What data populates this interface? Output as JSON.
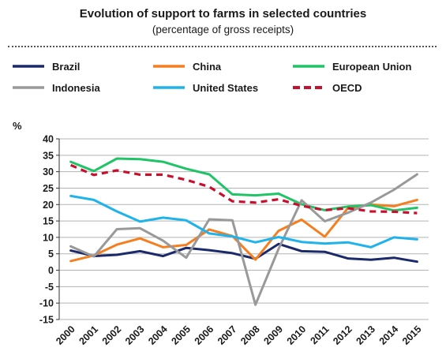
{
  "chart_data": {
    "type": "line",
    "title": "Evolution of support to farms in selected countries",
    "subtitle": "(percentage of gross receipts)",
    "ylabel": "%",
    "xlabel": "",
    "ylim": [
      -15,
      40
    ],
    "yticks": [
      40,
      35,
      30,
      25,
      20,
      15,
      10,
      5,
      0,
      -5,
      -10,
      -15
    ],
    "grid": true,
    "legend_position": "top",
    "categories": [
      "2000",
      "2001",
      "2002",
      "2003",
      "2004",
      "2005",
      "2006",
      "2007",
      "2008",
      "2009",
      "2010",
      "2011",
      "2012",
      "2013",
      "2014",
      "2015"
    ],
    "series": [
      {
        "name": "Brazil",
        "color": "#1b2a6b",
        "dash": "solid",
        "values": [
          6.0,
          4.3,
          4.7,
          5.8,
          4.3,
          6.8,
          6.1,
          5.2,
          3.5,
          8.0,
          5.8,
          5.6,
          3.6,
          3.2,
          3.8,
          2.6
        ]
      },
      {
        "name": "China",
        "color": "#f57f20",
        "dash": "solid",
        "values": [
          2.8,
          4.5,
          7.8,
          9.7,
          7.0,
          7.7,
          12.4,
          10.4,
          3.2,
          12.0,
          15.4,
          10.2,
          18.9,
          20.0,
          19.5,
          21.4
        ]
      },
      {
        "name": "European Union",
        "color": "#1fc466",
        "dash": "solid",
        "values": [
          33.0,
          30.2,
          34.0,
          33.8,
          33.0,
          30.9,
          29.2,
          23.1,
          22.8,
          23.3,
          20.1,
          18.3,
          19.4,
          19.8,
          18.2,
          19.0
        ]
      },
      {
        "name": "Indonesia",
        "color": "#999999",
        "dash": "solid",
        "values": [
          7.3,
          4.2,
          12.5,
          12.8,
          9.0,
          3.8,
          15.5,
          15.2,
          -10.5,
          6.5,
          21.3,
          14.9,
          17.5,
          20.6,
          24.5,
          29.2
        ]
      },
      {
        "name": "United States",
        "color": "#1eb3ea",
        "dash": "solid",
        "values": [
          22.6,
          21.4,
          17.9,
          14.8,
          16.0,
          15.2,
          11.2,
          10.3,
          8.5,
          10.1,
          8.6,
          8.1,
          8.5,
          7.0,
          10.0,
          9.4
        ]
      },
      {
        "name": "OECD",
        "color": "#c8102e",
        "dash": "dashed",
        "values": [
          32.0,
          29.0,
          30.4,
          29.1,
          29.1,
          27.5,
          25.4,
          21.0,
          20.6,
          21.6,
          19.6,
          18.3,
          18.9,
          17.9,
          17.8,
          17.4
        ]
      }
    ]
  }
}
